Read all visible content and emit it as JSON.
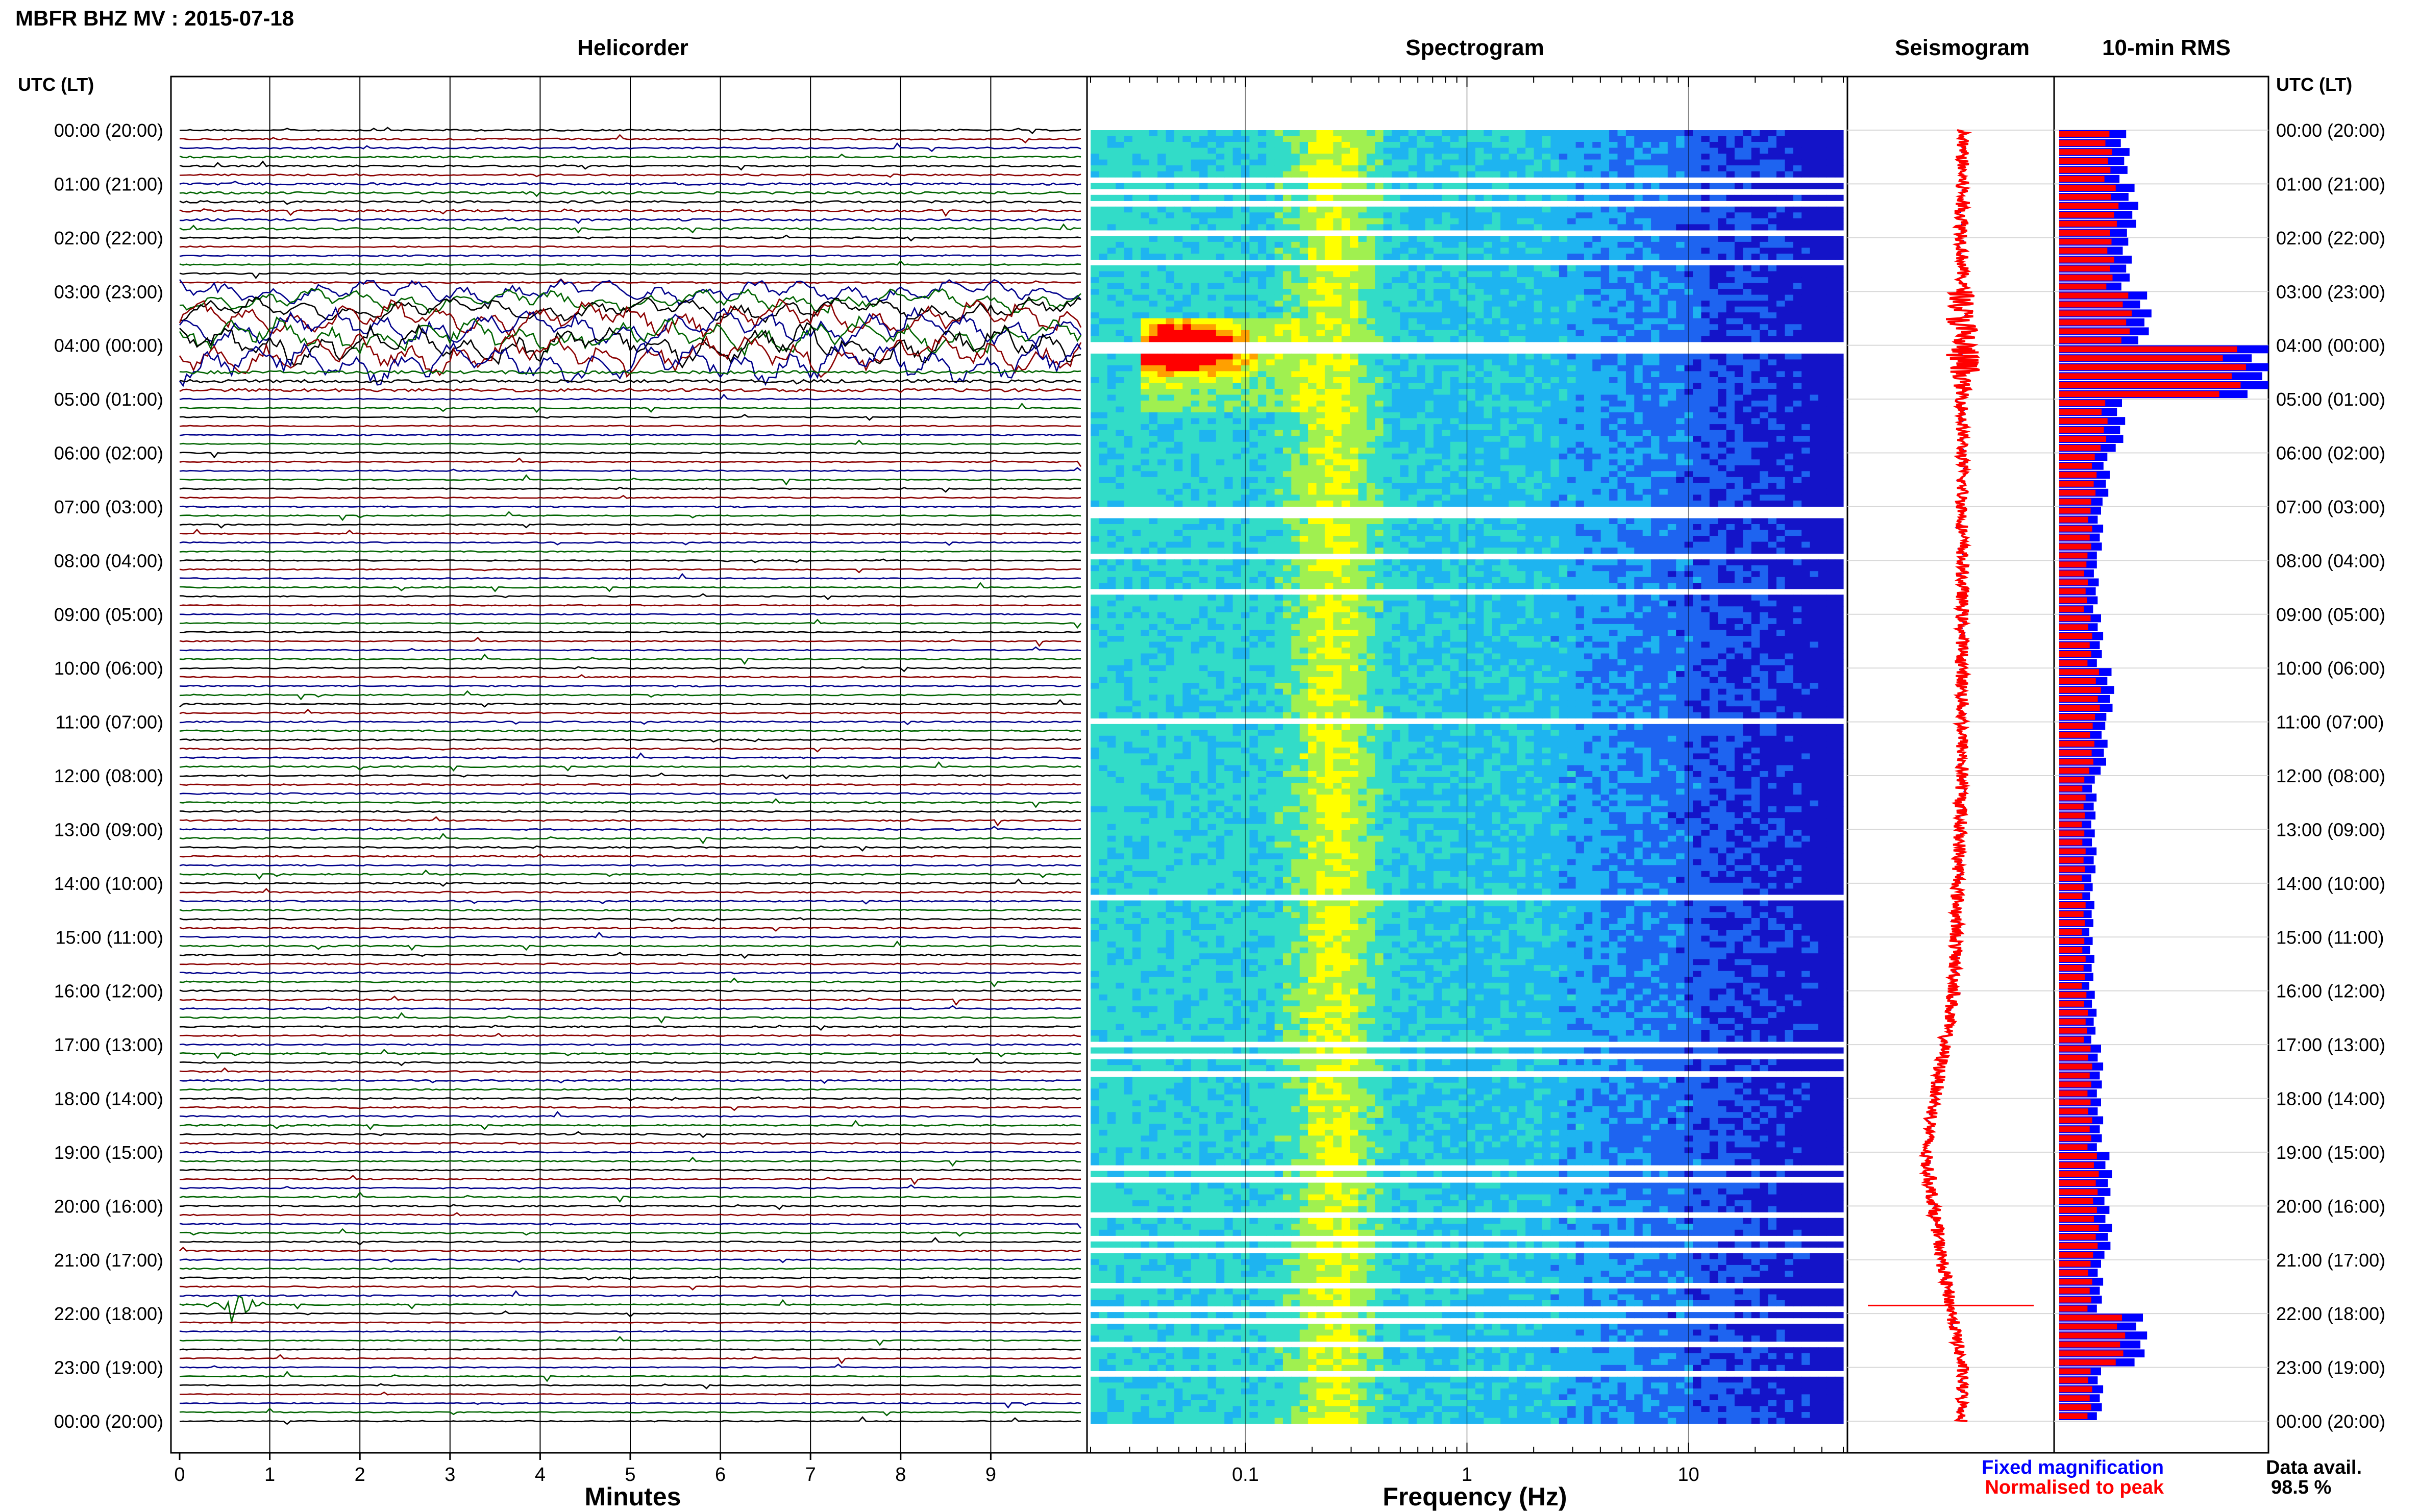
{
  "header": {
    "title": "MBFR BHZ MV : 2015-07-18"
  },
  "panels": {
    "helicorder": "Helicorder",
    "spectrogram": "Spectrogram",
    "seismogram": "Seismogram",
    "rms": "10-min RMS"
  },
  "axis_time_header": "UTC (LT)",
  "time_labels": [
    "00:00 (20:00)",
    "01:00 (21:00)",
    "02:00 (22:00)",
    "03:00 (23:00)",
    "04:00 (00:00)",
    "05:00 (01:00)",
    "06:00 (02:00)",
    "07:00 (03:00)",
    "08:00 (04:00)",
    "09:00 (05:00)",
    "10:00 (06:00)",
    "11:00 (07:00)",
    "12:00 (08:00)",
    "13:00 (09:00)",
    "14:00 (10:00)",
    "15:00 (11:00)",
    "16:00 (12:00)",
    "17:00 (13:00)",
    "18:00 (14:00)",
    "19:00 (15:00)",
    "20:00 (16:00)",
    "21:00 (17:00)",
    "22:00 (18:00)",
    "23:00 (19:00)",
    "00:00 (20:00)"
  ],
  "footer": {
    "legend_fixed": "Fixed magnification",
    "legend_norm": "Normalised to peak",
    "data_avail_label": "Data avail.",
    "data_avail_value": "98.5 %"
  },
  "colors": {
    "trace_cycle": [
      "#000000",
      "#8b0000",
      "#00008b",
      "#006400"
    ],
    "rms_fixed": "#0000ff",
    "rms_norm": "#ff0000",
    "seismo_norm": "#ff0000"
  },
  "chart_data": [
    {
      "type": "line",
      "name": "helicorder",
      "xlabel": "Minutes",
      "xlim": [
        0,
        10
      ],
      "xticks": [
        0,
        1,
        2,
        3,
        4,
        5,
        6,
        7,
        8,
        9
      ],
      "rows_per_hour": 6,
      "hours": 24,
      "row_activity_hours": [
        {
          "hour": 0,
          "level": 0.5
        },
        {
          "hour": 1,
          "level": 0.7
        },
        {
          "hour": 2,
          "level": 0.4
        },
        {
          "hour": 3,
          "level": 2.2
        },
        {
          "hour": 3.5,
          "level": 3.4
        },
        {
          "hour": 4,
          "level": 3.8
        },
        {
          "hour": 4.5,
          "level": 1.0
        },
        {
          "hour": 5,
          "level": 0.35
        },
        {
          "hour": 10,
          "level": 0.4
        },
        {
          "hour": 11,
          "level": 0.45
        },
        {
          "hour": 19,
          "level": 0.4
        },
        {
          "hour": 22,
          "level": 0.3
        }
      ],
      "events": [
        {
          "hour": 21.85,
          "minute": 0.6,
          "amplitude": 40
        }
      ]
    },
    {
      "type": "heatmap",
      "name": "spectrogram",
      "xlabel": "Frequency (Hz)",
      "xscale": "log",
      "xlim": [
        0.02,
        50
      ],
      "xticks": [
        0.1,
        1,
        10
      ],
      "ylim_hours": [
        0,
        24
      ],
      "color_scale": [
        "#1414c8",
        "#1e64f0",
        "#1eb4f0",
        "#32dcc8",
        "#a0f050",
        "#ffff00",
        "#ffa000",
        "#ff0000"
      ],
      "features": [
        {
          "name": "microseism",
          "freq": 0.25,
          "level": 0.62
        },
        {
          "name": "low-frequency event",
          "hours": [
            3.4,
            5.2
          ],
          "freq_range": [
            0.035,
            0.2
          ],
          "peak_level": 1.0
        }
      ]
    },
    {
      "type": "line",
      "name": "seismogram",
      "ylim_hours": [
        0,
        24
      ],
      "baseline_drift": [
        {
          "hour": 0,
          "offset": 0
        },
        {
          "hour": 12,
          "offset": 0
        },
        {
          "hour": 16,
          "offset": -0.04
        },
        {
          "hour": 19,
          "offset": -0.18
        },
        {
          "hour": 21,
          "offset": -0.1
        },
        {
          "hour": 23,
          "offset": 0
        }
      ]
    },
    {
      "type": "bar",
      "name": "10-min RMS",
      "orientation": "horizontal",
      "categories_hours": [
        0,
        1,
        2,
        3,
        4,
        5,
        6,
        7,
        8,
        9,
        10,
        11,
        12,
        13,
        14,
        15,
        16,
        17,
        18,
        19,
        20,
        21,
        22,
        23
      ],
      "series": [
        {
          "name": "Fixed magnification",
          "values": [
            0.32,
            0.36,
            0.33,
            0.42,
            1.0,
            0.3,
            0.23,
            0.2,
            0.18,
            0.2,
            0.25,
            0.22,
            0.17,
            0.17,
            0.16,
            0.16,
            0.17,
            0.2,
            0.2,
            0.24,
            0.24,
            0.2,
            0.4,
            0.2
          ]
        },
        {
          "name": "Normalised to peak",
          "values": [
            0.24,
            0.27,
            0.25,
            0.33,
            0.85,
            0.22,
            0.17,
            0.15,
            0.13,
            0.15,
            0.19,
            0.16,
            0.12,
            0.12,
            0.12,
            0.12,
            0.13,
            0.15,
            0.15,
            0.18,
            0.18,
            0.15,
            0.3,
            0.15
          ]
        }
      ]
    }
  ]
}
